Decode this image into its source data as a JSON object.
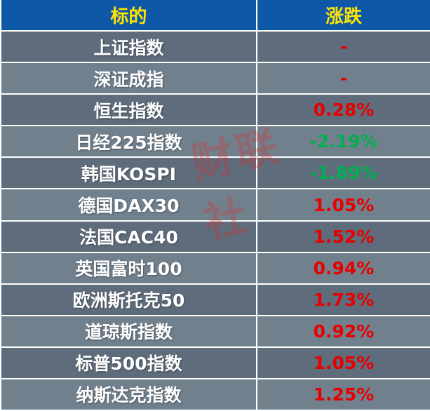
{
  "table": {
    "columns": [
      {
        "label": "标的"
      },
      {
        "label": "涨跌"
      }
    ],
    "rows": [
      {
        "name": "上证指数",
        "change": "-",
        "direction": "up"
      },
      {
        "name": "深证成指",
        "change": "-",
        "direction": "up"
      },
      {
        "name": "恒生指数",
        "change": "0.28%",
        "direction": "up"
      },
      {
        "name": "日经225指数",
        "change": "-2.19%",
        "direction": "down"
      },
      {
        "name": "韩国KOSPI",
        "change": "-1.89%",
        "direction": "down"
      },
      {
        "name": "德国DAX30",
        "change": "1.05%",
        "direction": "up"
      },
      {
        "name": "法国CAC40",
        "change": "1.52%",
        "direction": "up"
      },
      {
        "name": "英国富时100",
        "change": "0.94%",
        "direction": "up"
      },
      {
        "name": "欧洲斯托克50",
        "change": "1.73%",
        "direction": "up"
      },
      {
        "name": "道琼斯指数",
        "change": "0.92%",
        "direction": "up"
      },
      {
        "name": "标普500指数",
        "change": "1.05%",
        "direction": "up"
      },
      {
        "name": "纳斯达克指数",
        "change": "1.25%",
        "direction": "up"
      }
    ],
    "colors": {
      "header_bg": "#0F58A8",
      "header_text": "#FFE400",
      "row_dark": "#5E6C7B",
      "row_light": "#71808D",
      "up": "#E60000",
      "down": "#00B050"
    },
    "watermark": "财联社"
  },
  "chart_data": {
    "type": "table",
    "title": "",
    "columns": [
      "标的",
      "涨跌"
    ],
    "categories": [
      "上证指数",
      "深证成指",
      "恒生指数",
      "日经225指数",
      "韩国KOSPI",
      "德国DAX30",
      "法国CAC40",
      "英国富时100",
      "欧洲斯托克50",
      "道琼斯指数",
      "标普500指数",
      "纳斯达克指数"
    ],
    "values": [
      "-",
      "-",
      "0.28%",
      "-2.19%",
      "-1.89%",
      "1.05%",
      "1.52%",
      "0.94%",
      "1.73%",
      "0.92%",
      "1.05%",
      "1.25%"
    ],
    "value_colors_note": "red = up/flat, green = down (Chinese market convention)"
  }
}
